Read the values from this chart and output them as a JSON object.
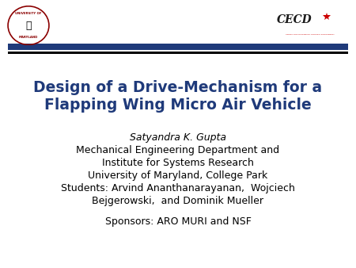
{
  "background_color": "#ffffff",
  "title_line1": "Design of a Drive-Mechanism for a",
  "title_line2": "Flapping Wing Micro Air Vehicle",
  "title_color": "#1F3A7A",
  "title_fontsize": 13.5,
  "body_lines": [
    {
      "text": "Satyandra K. Gupta",
      "style": "italic",
      "fontsize": 9.0
    },
    {
      "text": "Mechanical Engineering Department and",
      "style": "normal",
      "fontsize": 9.0
    },
    {
      "text": "Institute for Systems Research",
      "style": "normal",
      "fontsize": 9.0
    },
    {
      "text": "University of Maryland, College Park",
      "style": "normal",
      "fontsize": 9.0
    },
    {
      "text": "Students: Arvind Ananthanarayanan,  Wojciech",
      "style": "normal",
      "fontsize": 9.0
    },
    {
      "text": "Bejgerowski,  and Dominik Mueller",
      "style": "normal",
      "fontsize": 9.0
    }
  ],
  "sponsors_text": "Sponsors: ARO MURI and NSF",
  "sponsors_fontsize": 9.0,
  "body_color": "#000000",
  "bar1_color": "#1F3A7A",
  "bar2_color": "#000000",
  "umd_circle_color": "#8B0000",
  "cecd_color": "#1a1a1a",
  "cecd_star_color": "#CC0000",
  "cecd_sub_color": "#CC0000"
}
